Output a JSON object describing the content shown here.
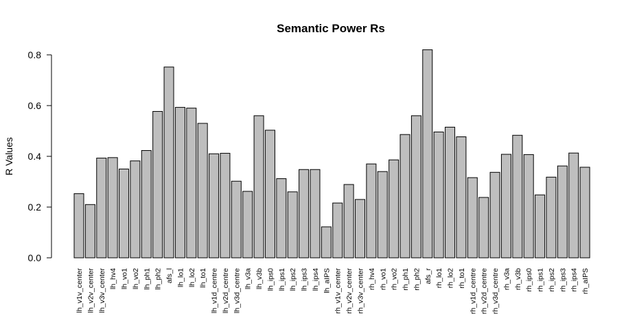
{
  "chart_data": {
    "type": "bar",
    "title": "Semantic Power Rs",
    "xlabel": "",
    "ylabel": "R Values",
    "ylim": [
      0,
      0.8
    ],
    "yticks": [
      "0.0",
      "0.2",
      "0.4",
      "0.6",
      "0.8"
    ],
    "grid": false,
    "bar_color": "#bebebe",
    "categories": [
      "lh_v1v_center",
      "lh_v2v_center",
      "lh_v3v_center",
      "lh_hv4",
      "lh_vo1",
      "lh_vo2",
      "lh_ph1",
      "lh_ph2",
      "afs_l",
      "lh_lo1",
      "lh_lo2",
      "lh_to1",
      "lh_v1d_centre",
      "lh_v2d_centre",
      "lh_v3d_centre",
      "lh_v3a",
      "lh_v3b",
      "lh_ips0",
      "lh_ips1",
      "lh_ips2",
      "lh_ips3",
      "lh_ips4",
      "lh_aIPS",
      "rh_v1v_center",
      "rh_v2v_center",
      "rh_v3v_center",
      "rh_hv4",
      "rh_vo1",
      "rh_vo2",
      "rh_ph1",
      "rh_ph2",
      "afs_r",
      "rh_lo1",
      "rh_lo2",
      "rh_to1",
      "rh_v1d_centre",
      "rh_v2d_centre",
      "rh_v3d_centre",
      "rh_v3a",
      "rh_v3b",
      "rh_ips0",
      "rh_ips1",
      "rh_ips2",
      "rh_ips3",
      "rh_ips4",
      "rh_aIPS"
    ],
    "values": [
      0.253,
      0.21,
      0.393,
      0.395,
      0.35,
      0.382,
      0.423,
      0.577,
      0.752,
      0.593,
      0.59,
      0.53,
      0.41,
      0.412,
      0.302,
      0.262,
      0.56,
      0.503,
      0.312,
      0.26,
      0.348,
      0.348,
      0.122,
      0.216,
      0.289,
      0.23,
      0.37,
      0.34,
      0.386,
      0.486,
      0.56,
      0.82,
      0.496,
      0.515,
      0.477,
      0.316,
      0.238,
      0.337,
      0.408,
      0.483,
      0.407,
      0.248,
      0.318,
      0.362,
      0.413,
      0.357
    ]
  }
}
